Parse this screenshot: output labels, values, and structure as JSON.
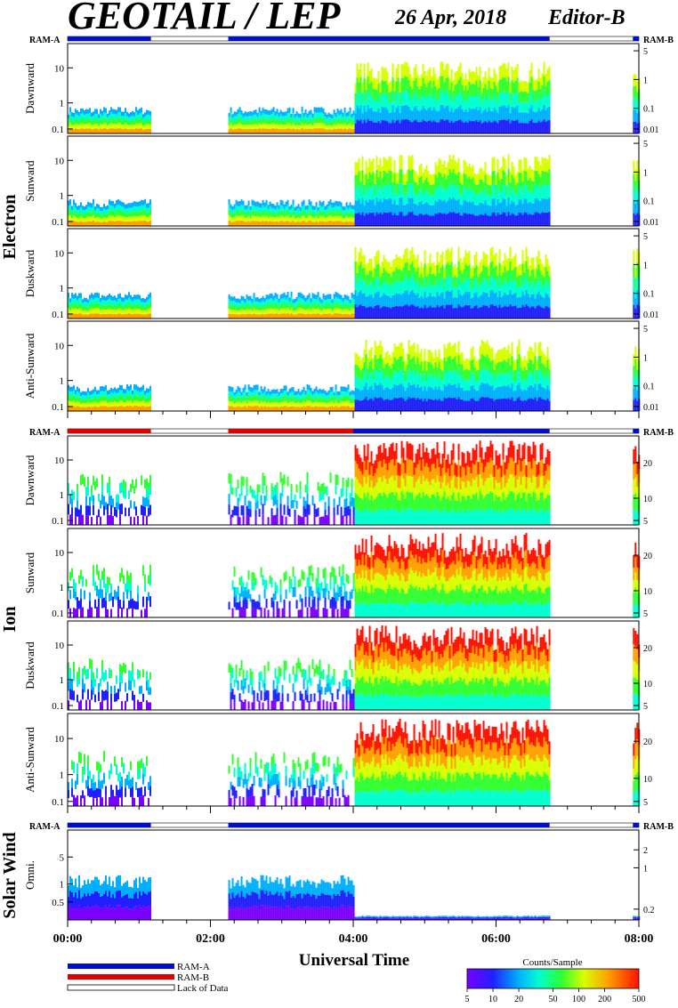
{
  "header": {
    "instrument": "GEOTAIL / LEP",
    "date": "26 Apr, 2018",
    "editor": "Editor-B"
  },
  "colors": {
    "ram_a": "#0010c8",
    "ram_b": "#e00000",
    "lack_of_data": "#ffffff",
    "background": "#ffffff"
  },
  "sections": [
    {
      "label": "Electron",
      "panels": [
        "Dawnward",
        "Sunward",
        "Duskward",
        "Anti-Sunward"
      ]
    },
    {
      "label": "Ion",
      "panels": [
        "Dawnward",
        "Sunward",
        "Duskward",
        "Anti-Sunward"
      ]
    },
    {
      "label": "Solar Wind",
      "panels": [
        "Omni."
      ]
    }
  ],
  "ram_labels": {
    "left": "RAM-A",
    "right": "RAM-B"
  },
  "chart_data": {
    "type": "heatmap",
    "xlabel": "Universal Time",
    "x_ticks": [
      "00:00",
      "02:00",
      "04:00",
      "06:00",
      "08:00"
    ],
    "xlim": [
      "00:00",
      "08:00"
    ],
    "electron_left_ticks": [
      "10",
      "1",
      "0.1"
    ],
    "electron_right_ticks": [
      "5",
      "1",
      "0.1",
      "0.01"
    ],
    "ion_left_ticks": [
      "10",
      "1",
      "0.1"
    ],
    "ion_right_ticks": [
      "20",
      "10",
      "5"
    ],
    "solar_left_ticks": [
      "5",
      "1",
      "0.5"
    ],
    "solar_right_ticks": [
      "2",
      "1",
      "0.2"
    ],
    "ram_bars": {
      "electron": [
        {
          "from": "00:00",
          "to": "01:10",
          "mode": "RAM-A"
        },
        {
          "from": "01:10",
          "to": "02:15",
          "mode": "Lack of Data"
        },
        {
          "from": "02:15",
          "to": "06:45",
          "mode": "RAM-A"
        },
        {
          "from": "06:45",
          "to": "07:55",
          "mode": "Lack of Data"
        },
        {
          "from": "07:55",
          "to": "08:00",
          "mode": "RAM-A"
        }
      ],
      "ion": [
        {
          "from": "00:00",
          "to": "01:10",
          "mode": "RAM-B"
        },
        {
          "from": "01:10",
          "to": "02:15",
          "mode": "Lack of Data"
        },
        {
          "from": "02:15",
          "to": "04:00",
          "mode": "RAM-B"
        },
        {
          "from": "04:00",
          "to": "06:45",
          "mode": "RAM-A"
        },
        {
          "from": "06:45",
          "to": "07:55",
          "mode": "Lack of Data"
        },
        {
          "from": "07:55",
          "to": "08:00",
          "mode": "RAM-A"
        }
      ],
      "solar": [
        {
          "from": "00:00",
          "to": "01:10",
          "mode": "RAM-A"
        },
        {
          "from": "01:10",
          "to": "02:15",
          "mode": "Lack of Data"
        },
        {
          "from": "02:15",
          "to": "06:45",
          "mode": "RAM-A"
        },
        {
          "from": "06:45",
          "to": "07:55",
          "mode": "Lack of Data"
        },
        {
          "from": "07:55",
          "to": "08:00",
          "mode": "RAM-A"
        }
      ]
    },
    "data_intervals": [
      [
        "00:00",
        "01:10"
      ],
      [
        "02:15",
        "06:45"
      ],
      [
        "07:55",
        "08:00"
      ]
    ],
    "legend": [
      {
        "label": "RAM-A",
        "color": "#0010c8"
      },
      {
        "label": "RAM-B",
        "color": "#e00000"
      },
      {
        "label": "Lack of Data",
        "color": "#ffffff"
      }
    ],
    "colorbar": {
      "title": "Counts/Sample",
      "ticks": [
        "5",
        "10",
        "20",
        "50",
        "100",
        "200",
        "500"
      ],
      "range": [
        5,
        500
      ],
      "scale": "log"
    }
  }
}
